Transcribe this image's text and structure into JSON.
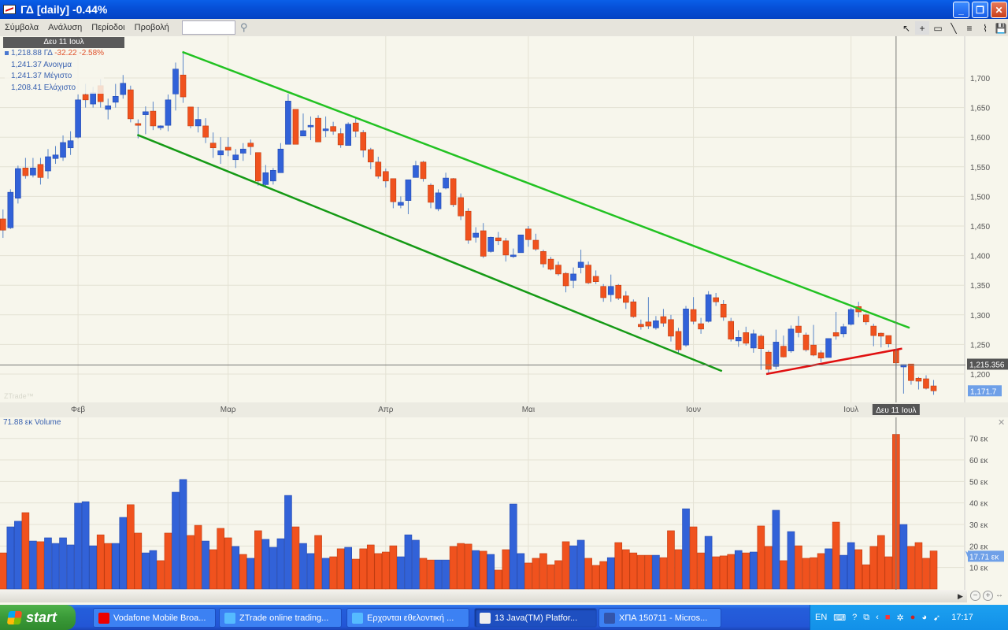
{
  "window": {
    "title": "ΓΔ [daily] -0.44%",
    "minimize": "_",
    "maximize": "❐",
    "close": "✕"
  },
  "menu": {
    "items": [
      "Σύμβολα",
      "Ανάλυση",
      "Περίοδοι",
      "Προβολή"
    ],
    "symbol_input_value": "",
    "search_icon": "magnifier-icon"
  },
  "toolbar": {
    "icons": [
      "pointer-icon",
      "crosshair-icon",
      "rectangle-icon",
      "line-icon",
      "horizontal-lines-icon",
      "chart-window-icon",
      "save-icon"
    ],
    "glyphs": [
      "↖",
      "+",
      "▭",
      "╲",
      "≡",
      "⌇",
      "💾"
    ]
  },
  "crosshair": {
    "date_tag": "Δευ 11 Ιουλ",
    "price_tag": "1,215.356"
  },
  "legend": {
    "close": "1,218.88",
    "symbol": "ΓΔ",
    "change": "-32.22",
    "change_pct": "-2.58%",
    "open_value": "1,241.37",
    "open_label": "Ανοιγμα",
    "high_value": "1,241.37",
    "high_label": "Μέγιστο",
    "low_value": "1,208.41",
    "low_label": "Ελάχιστο"
  },
  "watermark": "ZTrade™",
  "last_price_tag": "1,171.7",
  "volume_panel": {
    "label": "71.88 εκ Volume",
    "last_volume_tag": "17.71 εκ",
    "close_icon": "✕"
  },
  "colors": {
    "up": "#3262d8",
    "down": "#f0521e",
    "upper_channel": "#22c222",
    "lower_channel": "#159a15",
    "support": "#e01010",
    "background": "#f7f6ec",
    "grid": "#e4e2d4"
  },
  "chart_data": [
    {
      "type": "candlestick",
      "xlabel": "",
      "ylabel": "",
      "ylim": [
        1150,
        1760
      ],
      "price_ticks": [
        "1,700",
        "1,650",
        "1,600",
        "1,550",
        "1,500",
        "1,450",
        "1,400",
        "1,350",
        "1,300",
        "1,250",
        "1,200"
      ],
      "price_tick_values": [
        1700,
        1650,
        1600,
        1550,
        1500,
        1450,
        1400,
        1350,
        1300,
        1250,
        1200
      ],
      "x_labels": [
        {
          "label": "Φεβ",
          "bar": 11
        },
        {
          "label": "Μαρ",
          "bar": 31
        },
        {
          "label": "Απρ",
          "bar": 52
        },
        {
          "label": "Μαι",
          "bar": 71
        },
        {
          "label": "Ιουν",
          "bar": 93
        },
        {
          "label": "Ιουλ",
          "bar": 114
        }
      ],
      "selected_bar": 120,
      "crosshair_price": 1215.356,
      "last_price": 1171.7,
      "ohlc": [
        [
          1462,
          1478,
          1430,
          1443
        ],
        [
          1447,
          1512,
          1445,
          1507
        ],
        [
          1497,
          1552,
          1488,
          1547
        ],
        [
          1548,
          1565,
          1530,
          1535
        ],
        [
          1536,
          1565,
          1532,
          1548
        ],
        [
          1554,
          1565,
          1520,
          1532
        ],
        [
          1543,
          1580,
          1530,
          1567
        ],
        [
          1564,
          1585,
          1555,
          1570
        ],
        [
          1566,
          1603,
          1560,
          1591
        ],
        [
          1582,
          1610,
          1570,
          1594
        ],
        [
          1600,
          1672,
          1598,
          1663
        ],
        [
          1672,
          1690,
          1650,
          1663
        ],
        [
          1656,
          1685,
          1650,
          1675
        ],
        [
          1687,
          1698,
          1650,
          1660
        ],
        [
          1647,
          1665,
          1630,
          1653
        ],
        [
          1659,
          1690,
          1650,
          1669
        ],
        [
          1672,
          1705,
          1665,
          1691
        ],
        [
          1680,
          1687,
          1625,
          1631
        ],
        [
          1623,
          1630,
          1598,
          1620
        ],
        [
          1638,
          1652,
          1605,
          1643
        ],
        [
          1644,
          1660,
          1612,
          1619
        ],
        [
          1616,
          1620,
          1612,
          1619
        ],
        [
          1620,
          1672,
          1610,
          1663
        ],
        [
          1673,
          1726,
          1645,
          1715
        ],
        [
          1705,
          1744,
          1658,
          1668
        ],
        [
          1651,
          1651,
          1615,
          1619
        ],
        [
          1619,
          1651,
          1608,
          1630
        ],
        [
          1619,
          1632,
          1590,
          1600
        ],
        [
          1590,
          1608,
          1565,
          1582
        ],
        [
          1570,
          1600,
          1555,
          1577
        ],
        [
          1583,
          1600,
          1568,
          1578
        ],
        [
          1562,
          1580,
          1548,
          1570
        ],
        [
          1573,
          1590,
          1560,
          1580
        ],
        [
          1590,
          1596,
          1570,
          1584
        ],
        [
          1574,
          1574,
          1518,
          1526
        ],
        [
          1520,
          1553,
          1515,
          1540
        ],
        [
          1526,
          1548,
          1520,
          1544
        ],
        [
          1540,
          1590,
          1540,
          1580
        ],
        [
          1588,
          1673,
          1588,
          1661
        ],
        [
          1647,
          1647,
          1588,
          1588
        ],
        [
          1602,
          1640,
          1602,
          1611
        ],
        [
          1620,
          1635,
          1595,
          1620
        ],
        [
          1632,
          1637,
          1592,
          1592
        ],
        [
          1611,
          1635,
          1600,
          1614
        ],
        [
          1618,
          1626,
          1604,
          1610
        ],
        [
          1606,
          1615,
          1582,
          1587
        ],
        [
          1586,
          1625,
          1586,
          1622
        ],
        [
          1624,
          1633,
          1600,
          1610
        ],
        [
          1608,
          1612,
          1566,
          1578
        ],
        [
          1579,
          1582,
          1546,
          1558
        ],
        [
          1558,
          1567,
          1530,
          1534
        ],
        [
          1542,
          1547,
          1515,
          1526
        ],
        [
          1530,
          1530,
          1480,
          1491
        ],
        [
          1485,
          1500,
          1480,
          1490
        ],
        [
          1493,
          1528,
          1470,
          1528
        ],
        [
          1532,
          1560,
          1532,
          1552
        ],
        [
          1558,
          1560,
          1525,
          1530
        ],
        [
          1519,
          1522,
          1480,
          1490
        ],
        [
          1479,
          1512,
          1475,
          1506
        ],
        [
          1514,
          1540,
          1512,
          1531
        ],
        [
          1530,
          1531,
          1482,
          1486
        ],
        [
          1498,
          1505,
          1460,
          1467
        ],
        [
          1475,
          1480,
          1420,
          1426
        ],
        [
          1431,
          1448,
          1422,
          1438
        ],
        [
          1442,
          1455,
          1396,
          1399
        ],
        [
          1407,
          1432,
          1405,
          1431
        ],
        [
          1430,
          1440,
          1418,
          1425
        ],
        [
          1425,
          1430,
          1390,
          1401
        ],
        [
          1399,
          1412,
          1396,
          1401
        ],
        [
          1405,
          1435,
          1405,
          1435
        ],
        [
          1445,
          1450,
          1415,
          1427
        ],
        [
          1426,
          1437,
          1408,
          1411
        ],
        [
          1407,
          1410,
          1380,
          1386
        ],
        [
          1394,
          1398,
          1375,
          1377
        ],
        [
          1384,
          1390,
          1366,
          1369
        ],
        [
          1370,
          1372,
          1338,
          1349
        ],
        [
          1358,
          1380,
          1345,
          1369
        ],
        [
          1380,
          1410,
          1370,
          1389
        ],
        [
          1384,
          1390,
          1352,
          1354
        ],
        [
          1365,
          1375,
          1352,
          1356
        ],
        [
          1348,
          1352,
          1322,
          1329
        ],
        [
          1334,
          1368,
          1322,
          1348
        ],
        [
          1350,
          1352,
          1325,
          1328
        ],
        [
          1332,
          1340,
          1310,
          1321
        ],
        [
          1322,
          1326,
          1295,
          1297
        ],
        [
          1284,
          1292,
          1275,
          1280
        ],
        [
          1288,
          1330,
          1276,
          1281
        ],
        [
          1278,
          1298,
          1275,
          1290
        ],
        [
          1297,
          1310,
          1280,
          1286
        ],
        [
          1292,
          1300,
          1255,
          1264
        ],
        [
          1272,
          1278,
          1235,
          1241
        ],
        [
          1249,
          1315,
          1246,
          1310
        ],
        [
          1309,
          1330,
          1284,
          1289
        ],
        [
          1285,
          1295,
          1268,
          1276
        ],
        [
          1289,
          1340,
          1287,
          1334
        ],
        [
          1329,
          1337,
          1315,
          1322
        ],
        [
          1318,
          1325,
          1290,
          1296
        ],
        [
          1289,
          1295,
          1255,
          1259
        ],
        [
          1256,
          1274,
          1246,
          1262
        ],
        [
          1270,
          1280,
          1248,
          1252
        ],
        [
          1244,
          1275,
          1236,
          1268
        ],
        [
          1264,
          1267,
          1207,
          1243
        ],
        [
          1237,
          1240,
          1202,
          1208
        ],
        [
          1213,
          1275,
          1208,
          1254
        ],
        [
          1247,
          1265,
          1228,
          1229
        ],
        [
          1239,
          1282,
          1236,
          1276
        ],
        [
          1281,
          1298,
          1262,
          1270
        ],
        [
          1266,
          1270,
          1238,
          1241
        ],
        [
          1249,
          1283,
          1230,
          1232
        ],
        [
          1236,
          1240,
          1220,
          1227
        ],
        [
          1228,
          1260,
          1228,
          1260
        ],
        [
          1270,
          1305,
          1258,
          1264
        ],
        [
          1268,
          1285,
          1262,
          1280
        ],
        [
          1284,
          1312,
          1282,
          1309
        ],
        [
          1314,
          1322,
          1296,
          1305
        ],
        [
          1300,
          1302,
          1283,
          1288
        ],
        [
          1281,
          1285,
          1247,
          1265
        ],
        [
          1269,
          1270,
          1245,
          1264
        ],
        [
          1265,
          1265,
          1245,
          1251
        ],
        [
          1241.37,
          1241.37,
          1208.41,
          1218.88
        ],
        [
          1212,
          1216,
          1167,
          1216
        ],
        [
          1217,
          1217,
          1182,
          1189
        ],
        [
          1193,
          1195,
          1174,
          1188
        ],
        [
          1192,
          1198,
          1174,
          1176
        ],
        [
          1180,
          1190,
          1165,
          1171.7
        ]
      ],
      "trendlines": [
        {
          "role": "upper-channel",
          "from": {
            "bar": 24.9,
            "price": 1744
          },
          "to": {
            "bar": 121.8,
            "price": 1278
          }
        },
        {
          "role": "lower-channel",
          "from": {
            "bar": 18.9,
            "price": 1604
          },
          "to": {
            "bar": 96.8,
            "price": 1205
          }
        },
        {
          "role": "support",
          "from": {
            "bar": 102.7,
            "price": 1200
          },
          "to": {
            "bar": 120.8,
            "price": 1243
          }
        }
      ]
    },
    {
      "type": "bar",
      "title": "Volume",
      "unit": "εκ",
      "ylim": [
        0,
        78
      ],
      "ticks": [
        "70 εκ",
        "60 εκ",
        "50 εκ",
        "40 εκ",
        "30 εκ",
        "20 εκ",
        "10 εκ"
      ],
      "tick_values": [
        70,
        60,
        50,
        40,
        30,
        20,
        10
      ],
      "values": [
        16.8,
        28.9,
        31.5,
        35.5,
        22.3,
        22.0,
        23.8,
        21.2,
        23.8,
        20.5,
        39.9,
        40.6,
        20.1,
        25.2,
        21.2,
        21.2,
        33.3,
        39.2,
        26.0,
        16.8,
        17.9,
        13.2,
        26.0,
        45.0,
        50.9,
        24.9,
        29.6,
        22.3,
        18.3,
        28.2,
        23.8,
        19.8,
        16.1,
        14.3,
        27.1,
        23.1,
        19.4,
        23.4,
        43.5,
        28.9,
        21.2,
        16.5,
        24.9,
        14.3,
        15.0,
        18.7,
        19.4,
        13.9,
        18.7,
        20.5,
        16.5,
        17.2,
        20.1,
        15.0,
        25.2,
        22.7,
        14.3,
        13.5,
        13.5,
        13.5,
        19.8,
        21.2,
        20.9,
        17.9,
        17.6,
        16.1,
        8.8,
        18.3,
        39.5,
        16.5,
        12.1,
        14.3,
        16.5,
        11.3,
        13.2,
        22.0,
        20.1,
        22.7,
        14.3,
        11.0,
        12.8,
        14.6,
        21.6,
        18.3,
        16.8,
        15.7,
        15.7,
        15.7,
        14.6,
        27.1,
        18.3,
        37.3,
        28.9,
        16.8,
        24.5,
        15.0,
        15.4,
        16.1,
        17.9,
        16.8,
        17.2,
        29.3,
        19.8,
        36.6,
        13.2,
        26.7,
        20.1,
        14.3,
        14.6,
        16.5,
        18.7,
        31.1,
        15.7,
        21.6,
        18.3,
        11.3,
        19.8,
        24.9,
        15.0,
        71.88,
        30.0,
        19.8,
        21.6,
        14.3,
        17.71
      ],
      "direction": "duududuuuuuuudduudduudduuddudddudu"
    }
  ],
  "taskbar": {
    "start": "start",
    "tasks": [
      {
        "label": "Vodafone Mobile Broa...",
        "icon": "vodafone-icon"
      },
      {
        "label": "ZTrade online trading...",
        "icon": "ie-icon"
      },
      {
        "label": "Ερχονται εθελοντική ...",
        "icon": "ie-icon"
      },
      {
        "label": "13 Java(TM) Platfor...",
        "icon": "java-icon"
      },
      {
        "label": "ΧΠΑ 150711 - Micros...",
        "icon": "word-icon"
      }
    ],
    "language": "EN",
    "clock": "17:17"
  }
}
